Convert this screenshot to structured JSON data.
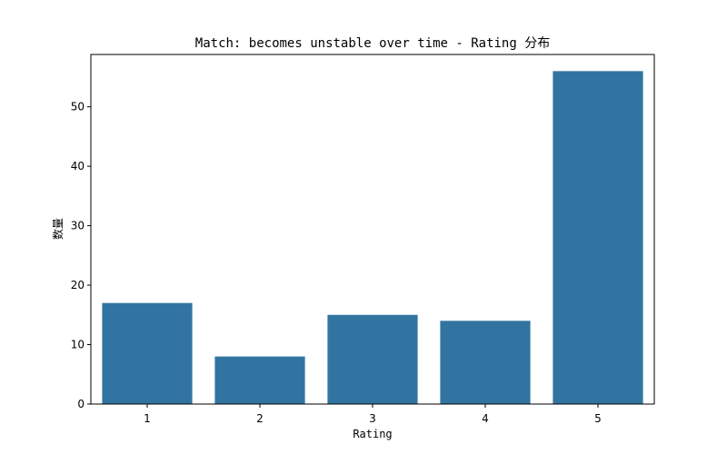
{
  "chart_data": {
    "type": "bar",
    "title": "Match: becomes unstable over time - Rating 分布",
    "xlabel": "Rating",
    "ylabel": "数量",
    "categories": [
      "1",
      "2",
      "3",
      "4",
      "5"
    ],
    "values": [
      17,
      8,
      15,
      14,
      56
    ],
    "ylim": [
      0,
      58.8
    ],
    "yticks": [
      0,
      10,
      20,
      30,
      40,
      50
    ],
    "bar_color": "#3274a1",
    "grid": false,
    "legend": "none"
  }
}
